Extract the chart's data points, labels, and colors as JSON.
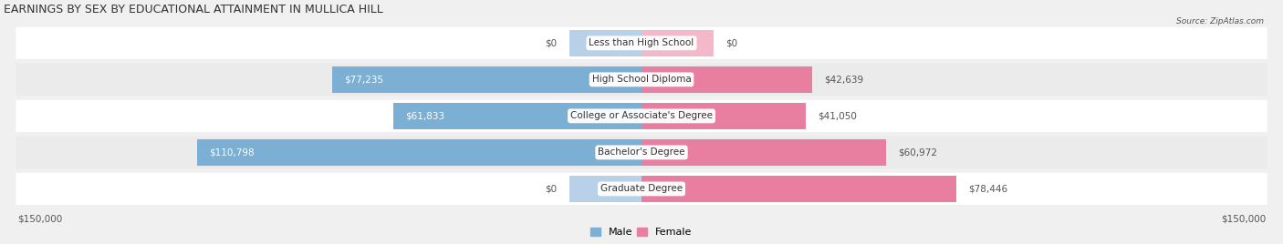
{
  "title": "EARNINGS BY SEX BY EDUCATIONAL ATTAINMENT IN MULLICA HILL",
  "source": "Source: ZipAtlas.com",
  "categories": [
    "Less than High School",
    "High School Diploma",
    "College or Associate's Degree",
    "Bachelor's Degree",
    "Graduate Degree"
  ],
  "male_values": [
    0,
    77235,
    61833,
    110798,
    0
  ],
  "female_values": [
    0,
    42639,
    41050,
    60972,
    78446
  ],
  "male_color": "#7bafd4",
  "female_color": "#e87fa0",
  "male_color_light": "#b8d0e8",
  "female_color_light": "#f4b8cb",
  "max_value": 150000,
  "background_color": "#f0f0f0",
  "title_fontsize": 9,
  "label_fontsize": 7.5,
  "axis_label_fontsize": 7.5,
  "legend_fontsize": 8,
  "zero_bar_width": 18000
}
